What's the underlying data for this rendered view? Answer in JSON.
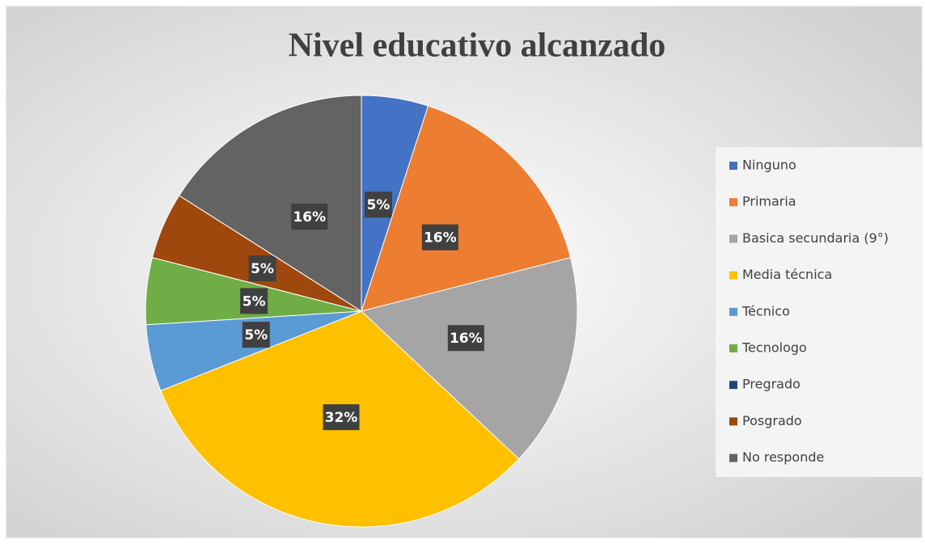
{
  "chart_data": {
    "type": "pie",
    "title": "Nivel educativo alcanzado",
    "categories": [
      "Ninguno",
      "Primaria",
      "Basica secundaria (9°)",
      "Media técnica",
      "Técnico",
      "Tecnologo",
      "Pregrado",
      "Posgrado",
      "No responde"
    ],
    "values": [
      5,
      16,
      16,
      32,
      5,
      5,
      0,
      5,
      16
    ],
    "value_labels": [
      "5%",
      "16%",
      "16%",
      "32%",
      "5%",
      "5%",
      null,
      "5%",
      "16%"
    ],
    "colors": [
      "#4472c4",
      "#ed7d31",
      "#a5a5a5",
      "#ffc000",
      "#5b9bd5",
      "#70ad47",
      "#264478",
      "#9e480e",
      "#636363"
    ],
    "legend": "right"
  }
}
